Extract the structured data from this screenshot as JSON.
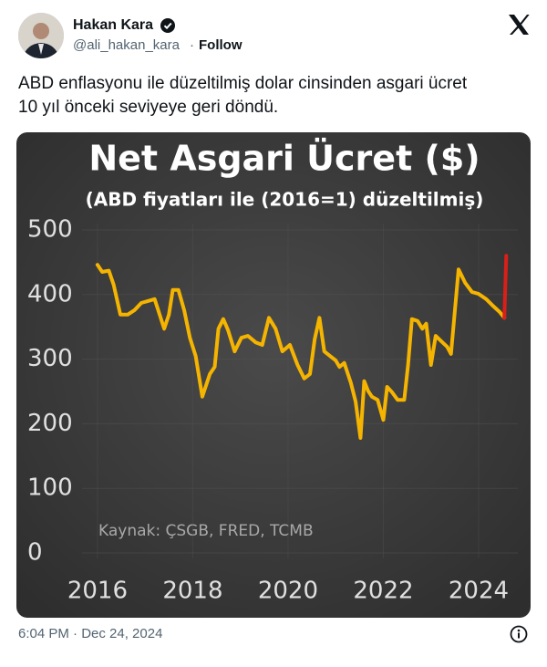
{
  "tweet": {
    "name": "Hakan Kara",
    "handle": "@ali_hakan_kara",
    "follow": "Follow",
    "text": [
      "ABD enflasyonu ile düzeltilmiş dolar cinsinden asgari ücret",
      "10 yıl önceki seviyeye geri döndü."
    ],
    "timestamp": "6:04 PM · Dec 24, 2024"
  },
  "chart_data": {
    "type": "line",
    "title": "Net Asgari Ücret ($)",
    "subtitle": "(ABD fiyatları ile (2016=1) düzeltilmiş)",
    "annotation": "Kaynak: ÇSGB, FRED, TCMB",
    "xlim": [
      2015.6,
      2024.9
    ],
    "xticks": [
      2016,
      2018,
      2020,
      2022,
      2024
    ],
    "ylim": [
      0,
      500
    ],
    "yticks": [
      0,
      100,
      200,
      300,
      400,
      500
    ],
    "grid": true,
    "series": [
      {
        "color": "#f5b400",
        "x": [
          2016.0,
          2016.1,
          2016.24,
          2016.34,
          2016.48,
          2016.64,
          2016.78,
          2016.92,
          2017.06,
          2017.2,
          2017.4,
          2017.5,
          2017.58,
          2017.7,
          2017.82,
          2017.94,
          2018.06,
          2018.2,
          2018.36,
          2018.46,
          2018.54,
          2018.64,
          2018.74,
          2018.88,
          2019.02,
          2019.16,
          2019.32,
          2019.46,
          2019.6,
          2019.74,
          2019.88,
          2020.04,
          2020.2,
          2020.34,
          2020.46,
          2020.56,
          2020.66,
          2020.76,
          2020.88,
          2021.0,
          2021.08,
          2021.18,
          2021.32,
          2021.42,
          2021.52,
          2021.6,
          2021.68,
          2021.76,
          2021.88,
          2022.0,
          2022.08,
          2022.18,
          2022.3,
          2022.44,
          2022.52,
          2022.6,
          2022.72,
          2022.82,
          2022.9,
          2023.0,
          2023.1,
          2023.24,
          2023.34,
          2023.42,
          2023.58,
          2023.72,
          2023.86,
          2024.0,
          2024.16,
          2024.28,
          2024.44,
          2024.54
        ],
        "values": [
          446,
          435,
          437,
          415,
          369,
          369,
          376,
          387,
          390,
          393,
          347,
          369,
          407,
          407,
          376,
          333,
          305,
          242,
          277,
          288,
          347,
          362,
          345,
          312,
          333,
          336,
          326,
          322,
          364,
          347,
          312,
          322,
          291,
          270,
          277,
          331,
          364,
          312,
          305,
          298,
          288,
          294,
          263,
          234,
          178,
          266,
          251,
          242,
          237,
          206,
          257,
          249,
          237,
          237,
          291,
          362,
          359,
          347,
          355,
          291,
          336,
          326,
          319,
          308,
          439,
          418,
          404,
          401,
          393,
          384,
          373,
          364
        ]
      },
      {
        "color": "#d91f1a",
        "x": [
          2024.54,
          2024.58
        ],
        "values": [
          364,
          460
        ]
      }
    ]
  }
}
